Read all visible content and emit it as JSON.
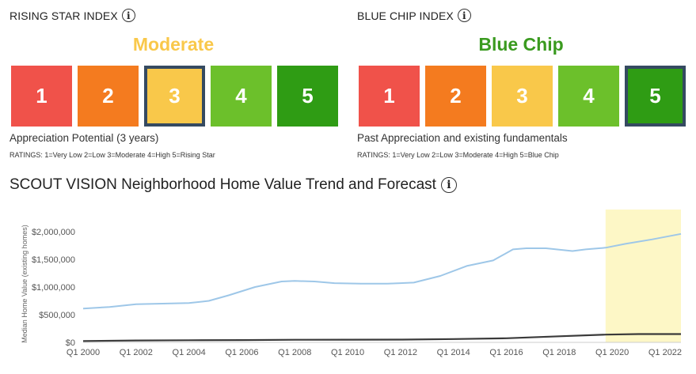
{
  "rising_star": {
    "title": "RISING STAR INDEX",
    "rating_label": "Moderate",
    "rating_color": "#f9c84a",
    "boxes": [
      {
        "label": "1",
        "color": "#f0524a"
      },
      {
        "label": "2",
        "color": "#f47b1f"
      },
      {
        "label": "3",
        "color": "#f9c84a"
      },
      {
        "label": "4",
        "color": "#6cc02b"
      },
      {
        "label": "5",
        "color": "#2f9c14"
      }
    ],
    "selected": 3,
    "caption": "Appreciation Potential (3 years)",
    "ratings": "RATINGS: 1=Very Low 2=Low 3=Moderate 4=High 5=Rising Star"
  },
  "blue_chip": {
    "title": "BLUE CHIP INDEX",
    "rating_label": "Blue Chip",
    "rating_color": "#3a9a1f",
    "boxes": [
      {
        "label": "1",
        "color": "#f0524a"
      },
      {
        "label": "2",
        "color": "#f47b1f"
      },
      {
        "label": "3",
        "color": "#f9c84a"
      },
      {
        "label": "4",
        "color": "#6cc02b"
      },
      {
        "label": "5",
        "color": "#2f9c14"
      }
    ],
    "selected": 5,
    "caption": "Past Appreciation and existing fundamentals",
    "ratings": "RATINGS: 1=Very Low 2=Low 3=Moderate 4=High 5=Blue Chip"
  },
  "trend": {
    "title": "SCOUT VISION Neighborhood Home Value Trend and Forecast",
    "info_icon": "info-icon"
  },
  "chart_data": {
    "type": "line",
    "title": "",
    "xlabel": "",
    "ylabel": "Median Home Value (existing homes)",
    "x_ticks": [
      "Q1 2000",
      "Q1 2002",
      "Q1 2004",
      "Q1 2006",
      "Q1 2008",
      "Q1 2010",
      "Q1 2012",
      "Q1 2014",
      "Q1 2016",
      "Q1 2018",
      "Q1 2020",
      "Q1 2022"
    ],
    "y_ticks": [
      "$0",
      "$500,000",
      "$1,000,000",
      "$1,500,000",
      "$2,000,000"
    ],
    "ylim": [
      0,
      2400000
    ],
    "xlim": [
      2000.0,
      2022.6
    ],
    "forecast_region": {
      "from": 2019.75,
      "to": 2022.6,
      "color": "#fdf7c6"
    },
    "series": [
      {
        "color": "#9ec7e8",
        "x": [
          2000.0,
          2001.0,
          2002.0,
          2003.0,
          2004.0,
          2004.75,
          2005.5,
          2006.5,
          2007.5,
          2008.0,
          2008.75,
          2009.5,
          2010.5,
          2011.5,
          2012.5,
          2013.5,
          2014.5,
          2015.5,
          2016.25,
          2016.75,
          2017.5,
          2018.5,
          2019.0,
          2019.5,
          2019.75,
          2020.5,
          2021.5,
          2022.6
        ],
        "values": [
          610000,
          640000,
          690000,
          700000,
          710000,
          750000,
          850000,
          1000000,
          1100000,
          1110000,
          1100000,
          1070000,
          1060000,
          1060000,
          1080000,
          1200000,
          1380000,
          1480000,
          1680000,
          1700000,
          1700000,
          1650000,
          1680000,
          1700000,
          1710000,
          1780000,
          1860000,
          1960000
        ]
      },
      {
        "color": "#3a3a3a",
        "x": [
          2000.0,
          2002.0,
          2004.0,
          2006.0,
          2008.0,
          2010.0,
          2012.0,
          2014.0,
          2016.0,
          2018.0,
          2019.75,
          2021.0,
          2022.6
        ],
        "values": [
          25000,
          35000,
          38000,
          42000,
          47000,
          48000,
          50000,
          60000,
          75000,
          110000,
          140000,
          150000,
          150000
        ]
      }
    ],
    "grid": false,
    "legend": "none"
  }
}
